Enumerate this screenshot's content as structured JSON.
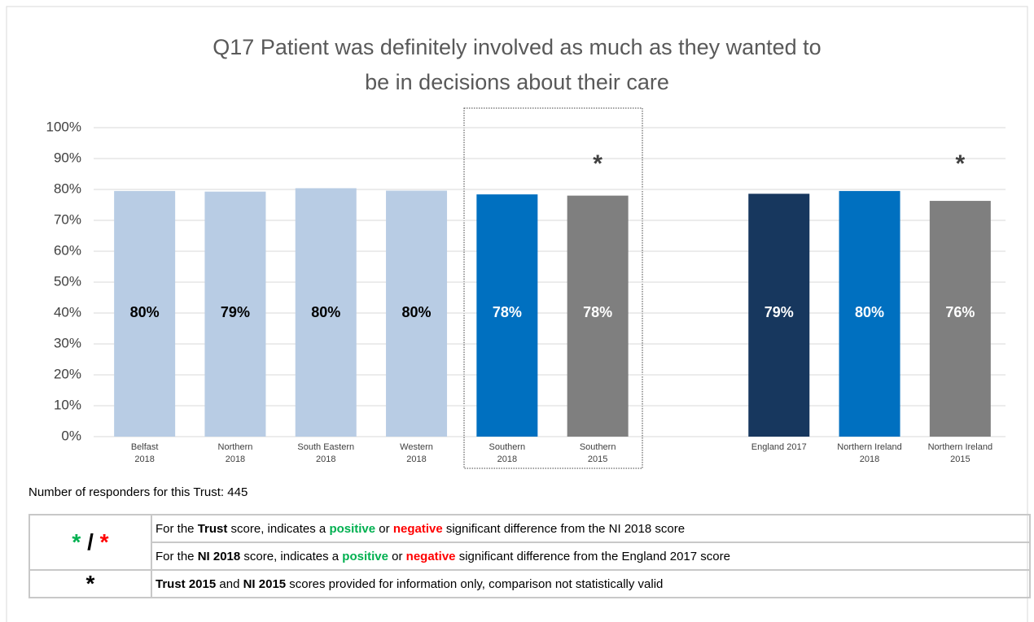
{
  "chart_data": {
    "type": "bar",
    "title": [
      "Q17 Patient was definitely involved as much as they wanted to",
      "be in decisions about their care"
    ],
    "categories": [
      [
        "Belfast",
        "2018"
      ],
      [
        "Northern",
        "2018"
      ],
      [
        "South Eastern",
        "2018"
      ],
      [
        "Western",
        "2018"
      ],
      [
        "Southern",
        "2018"
      ],
      [
        "Southern",
        "2015"
      ],
      null,
      [
        "England 2017"
      ],
      [
        "Northern Ireland",
        "2018"
      ],
      [
        "Northern Ireland",
        "2015"
      ]
    ],
    "values": [
      79.5,
      79.3,
      80.4,
      79.6,
      78.4,
      78.0,
      null,
      78.6,
      79.5,
      76.3
    ],
    "value_labels": [
      "80%",
      "79%",
      "80%",
      "80%",
      "78%",
      "78%",
      null,
      "79%",
      "80%",
      "76%"
    ],
    "colors": [
      "#b8cce4",
      "#b8cce4",
      "#b8cce4",
      "#b8cce4",
      "#0070c0",
      "#7f7f7f",
      null,
      "#17375e",
      "#0070c0",
      "#7f7f7f"
    ],
    "label_colors": [
      "#000000",
      "#000000",
      "#000000",
      "#000000",
      "#ffffff",
      "#ffffff",
      null,
      "#ffffff",
      "#ffffff",
      "#ffffff"
    ],
    "annotations": [
      null,
      null,
      null,
      null,
      null,
      "*",
      null,
      null,
      null,
      "*"
    ],
    "ylim": [
      0,
      100
    ],
    "yticks": [
      {
        "value": 0,
        "label": "0%"
      },
      {
        "value": 10,
        "label": "10%"
      },
      {
        "value": 20,
        "label": "20%"
      },
      {
        "value": 30,
        "label": "30%"
      },
      {
        "value": 40,
        "label": "40%"
      },
      {
        "value": 50,
        "label": "50%"
      },
      {
        "value": 60,
        "label": "60%"
      },
      {
        "value": 70,
        "label": "70%"
      },
      {
        "value": 80,
        "label": "80%"
      },
      {
        "value": 90,
        "label": "90%"
      },
      {
        "value": 100,
        "label": "100%"
      }
    ],
    "grid": true
  },
  "footnote": "Number of responders for this Trust: 445",
  "legend": {
    "rows": [
      {
        "symbol": [
          {
            "text": "*",
            "color": "#00b050"
          },
          {
            "text": "/"
          },
          {
            "text": "*",
            "color": "#ff0000"
          }
        ],
        "lines": [
          [
            {
              "text": "For the "
            },
            {
              "text": "Trust",
              "bold": true
            },
            {
              "text": " score, indicates a "
            },
            {
              "text": "positive",
              "bold": true,
              "color": "#00b050"
            },
            {
              "text": " or "
            },
            {
              "text": "negative",
              "bold": true,
              "color": "#ff0000"
            },
            {
              "text": " significant difference from the NI 2018 score"
            }
          ],
          [
            {
              "text": "For the "
            },
            {
              "text": "NI 2018",
              "bold": true
            },
            {
              "text": " score, indicates a "
            },
            {
              "text": "positive",
              "bold": true,
              "color": "#00b050"
            },
            {
              "text": " or "
            },
            {
              "text": "negative",
              "bold": true,
              "color": "#ff0000"
            },
            {
              "text": " significant difference from the England 2017 score"
            }
          ]
        ]
      },
      {
        "symbol": [
          {
            "text": "*"
          }
        ],
        "lines": [
          [
            {
              "text": "Trust 2015",
              "bold": true
            },
            {
              "text": " and "
            },
            {
              "text": "NI 2015",
              "bold": true
            },
            {
              "text": " scores provided for information only, comparison not statistically valid"
            }
          ]
        ]
      }
    ]
  }
}
